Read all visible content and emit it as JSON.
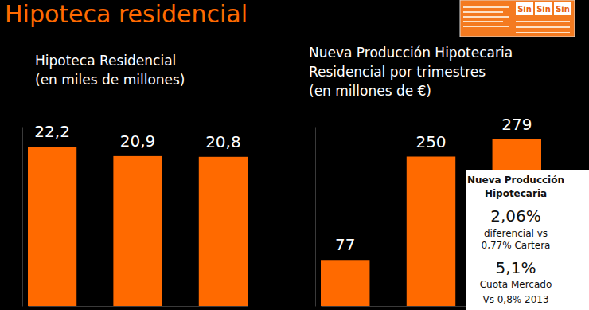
{
  "title": "Hipoteca residencial",
  "banner": [
    "Sin",
    "Sin",
    "Sin"
  ],
  "chart_data": [
    {
      "type": "bar",
      "title": [
        "Hipoteca Residencial"
      ],
      "subtitle": "(en miles de millones)",
      "categories": [
        null,
        null,
        null
      ],
      "values": [
        22.2,
        20.9,
        20.8
      ],
      "value_labels": [
        "22,2",
        "20,9",
        "20,8"
      ],
      "color": "#ff6a00",
      "ylim": [
        0,
        25
      ],
      "yticks": [],
      "data_labels": true,
      "tick_labels": false,
      "grid": false
    },
    {
      "type": "bar",
      "title": [
        "Nueva Producción Hipotecaria",
        "Residencial por trimestres"
      ],
      "subtitle": "(en millones de €)",
      "categories": [
        null,
        null,
        null
      ],
      "values": [
        77,
        250,
        279
      ],
      "color": "#ff6a00",
      "ylim": [
        0,
        300
      ],
      "yticks": [],
      "data_labels": true,
      "tick_labels": false,
      "grid": false,
      "annotations": [
        "Nueva Producción",
        "Hipotecaria",
        "2,06%",
        "diferencial vs",
        "0,77% Cartera",
        "5,1%",
        "Cuota Mercado",
        "Vs 0,8% 2013"
      ]
    }
  ]
}
